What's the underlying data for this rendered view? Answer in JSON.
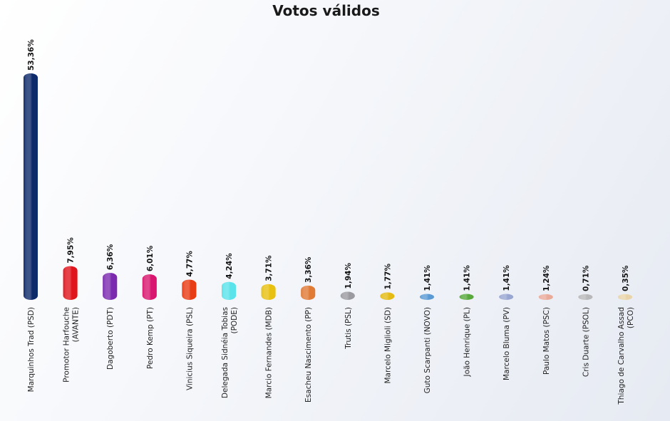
{
  "chart_data": {
    "type": "bar",
    "title": "Votos válidos",
    "xlabel": "",
    "ylabel": "",
    "ylim": [
      0,
      53.36
    ],
    "grid": false,
    "legend": "none",
    "categories": [
      [
        "Marquinhos Trad (PSD)"
      ],
      [
        "Promotor Harfouche",
        "(AVANTE)"
      ],
      [
        "Dagoberto (PDT)"
      ],
      [
        "Pedro Kemp (PT)"
      ],
      [
        "Vinicius Siqueira (PSL)"
      ],
      [
        "Delegada Sidnéia Tobias",
        "(PODE)"
      ],
      [
        "Marcio Fernandes (MDB)"
      ],
      [
        "Esacheu Nascimento (PP)"
      ],
      [
        "Trutis (PSL)"
      ],
      [
        "Marcelo Miglioli (SD)"
      ],
      [
        "Guto Scarpanti (NOVO)"
      ],
      [
        "João Henrique (PL)"
      ],
      [
        "Marcelo Bluma (PV)"
      ],
      [
        "Paulo Matos (PSC)"
      ],
      [
        "Cris Duarte (PSOL)"
      ],
      [
        "Thiago de Carvalho Assad",
        "(PCO)"
      ]
    ],
    "values": [
      53.36,
      7.95,
      6.36,
      6.01,
      4.77,
      4.24,
      3.71,
      3.36,
      1.94,
      1.77,
      1.41,
      1.41,
      1.41,
      1.24,
      0.71,
      0.35
    ],
    "value_labels": [
      "53,36%",
      "7,95%",
      "6,36%",
      "6,01%",
      "4,77%",
      "4,24%",
      "3,71%",
      "3,36%",
      "1,94%",
      "1,77%",
      "1,41%",
      "1,41%",
      "1,41%",
      "1,24%",
      "0,71%",
      "0,35%"
    ],
    "colors": [
      "#0d2a6b",
      "#e0141c",
      "#7b2ab0",
      "#d9166f",
      "#e83c14",
      "#5ae3ea",
      "#e8c010",
      "#e07a35",
      "#9a9aa0",
      "#e3bb14",
      "#5a9ad4",
      "#58a83c",
      "#98a6d2",
      "#eaaa9a",
      "#b8b8bb",
      "#e8d4a8"
    ]
  }
}
